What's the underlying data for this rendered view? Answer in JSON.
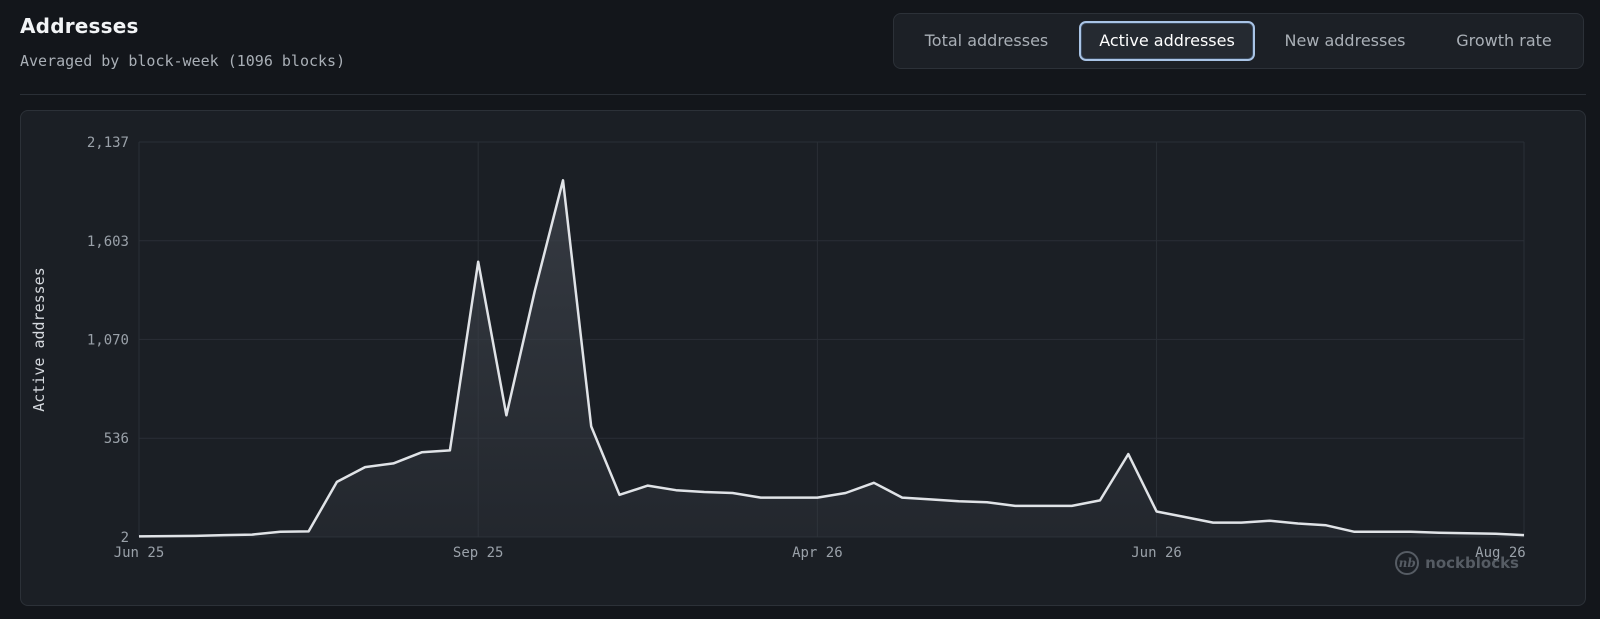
{
  "header": {
    "title": "Addresses",
    "subtitle": "Averaged by block-week (1096 blocks)"
  },
  "tabs": [
    {
      "label": "Total addresses",
      "active": false
    },
    {
      "label": "Active addresses",
      "active": true
    },
    {
      "label": "New addresses",
      "active": false
    },
    {
      "label": "Growth rate",
      "active": false
    }
  ],
  "brand": {
    "name": "nockblocks",
    "icon": "nb-logo-icon"
  },
  "colors": {
    "line": "#e0e3e7",
    "fill": "#3a3f47",
    "grid": "#2a2f36",
    "accent": "#a9c4e6"
  },
  "chart_data": {
    "type": "area",
    "ylabel": "Active addresses",
    "ylim": [
      2,
      2137
    ],
    "yticks": [
      2,
      536,
      1070,
      1603,
      2137
    ],
    "ytick_labels": [
      "2",
      "536",
      "1,070",
      "1,603",
      "2,137"
    ],
    "xticks": [
      {
        "label": "Jun 25",
        "index": 0
      },
      {
        "label": "Sep 25",
        "index": 12
      },
      {
        "label": "Apr 26",
        "index": 24
      },
      {
        "label": "Jun 26",
        "index": 36
      },
      {
        "label": "Aug 26",
        "index": 48
      }
    ],
    "values": [
      5,
      7,
      8,
      12,
      15,
      30,
      32,
      300,
      380,
      400,
      460,
      470,
      1490,
      660,
      1330,
      1930,
      600,
      230,
      280,
      255,
      245,
      240,
      215,
      215,
      215,
      240,
      295,
      215,
      205,
      195,
      190,
      170,
      170,
      170,
      200,
      450,
      140,
      110,
      80,
      80,
      90,
      75,
      65,
      30,
      30,
      30,
      25,
      22,
      20,
      12
    ]
  }
}
